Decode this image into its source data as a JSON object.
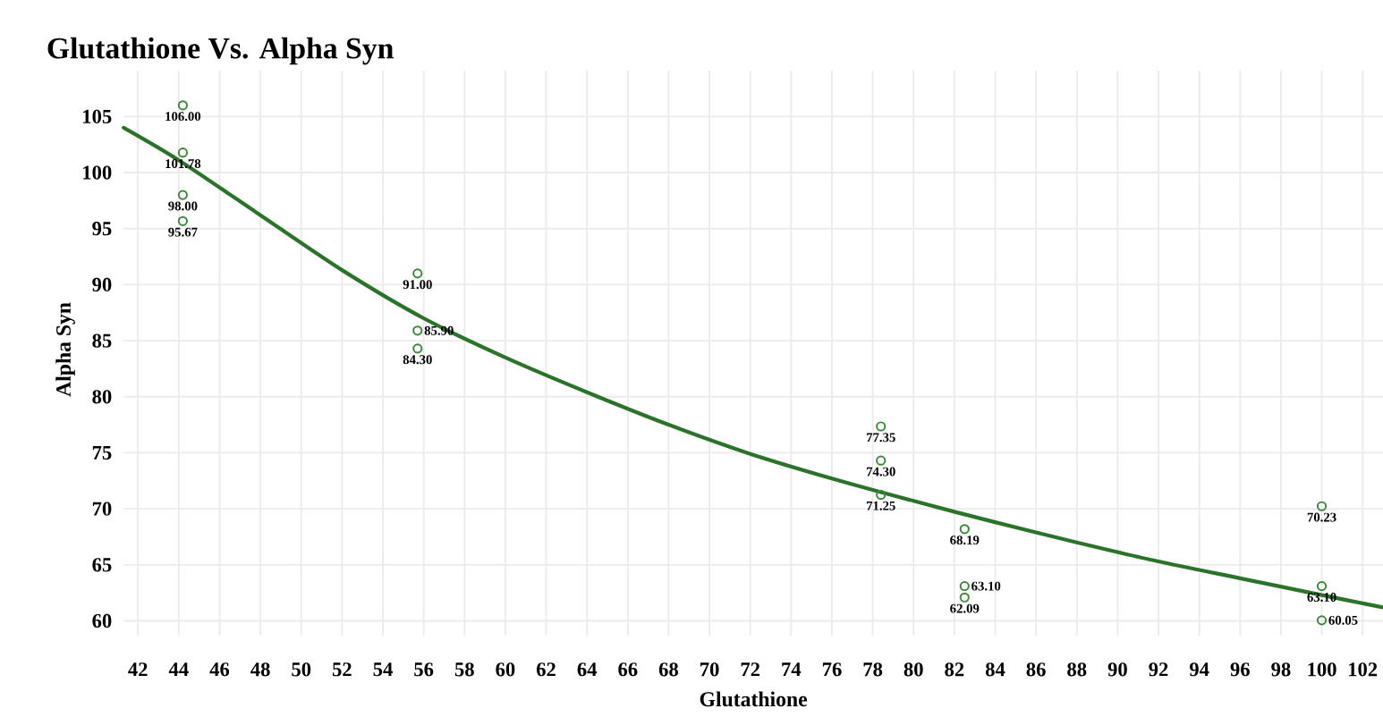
{
  "chart_data": {
    "type": "scatter",
    "title": "Glutathione Vs. Alpha Syn",
    "xlabel": "Glutathione",
    "ylabel": "Alpha Syn",
    "xlim": [
      41.3,
      103
    ],
    "ylim": [
      58.7,
      109.1
    ],
    "xticks": [
      42,
      44,
      46,
      48,
      50,
      52,
      54,
      56,
      58,
      60,
      62,
      64,
      66,
      68,
      70,
      72,
      74,
      76,
      78,
      80,
      82,
      84,
      86,
      88,
      90,
      92,
      94,
      96,
      98,
      100,
      102
    ],
    "yticks": [
      60,
      65,
      70,
      75,
      80,
      85,
      90,
      95,
      100,
      105
    ],
    "grid": true,
    "marker": "circle",
    "series": [
      {
        "color": "#3a8a3a",
        "x": [
          44.2,
          44.2,
          44.2,
          44.2,
          55.7,
          55.7,
          55.7,
          78.4,
          78.4,
          78.4,
          82.5,
          82.5,
          82.5,
          100,
          100,
          100
        ],
        "values": [
          106,
          101.78,
          98,
          95.67,
          91,
          85.9,
          84.3,
          77.35,
          74.3,
          71.25,
          68.19,
          63.1,
          62.09,
          70.23,
          63.1,
          60.05
        ],
        "value_labels": [
          "106.00",
          "101.78",
          "98.00",
          "95.67",
          "91.00",
          "85.90",
          "84.30",
          "77.35",
          "74.30",
          "71.25",
          "68.19",
          "63.10",
          "62.09",
          "70.23",
          "63.10",
          "60.05"
        ]
      },
      {
        "type": "line",
        "color": "#2a742a",
        "marker": "none",
        "line_style": "solid",
        "x": [
          41.3,
          44,
          48,
          52,
          56,
          60,
          64,
          68,
          72,
          76,
          80,
          84,
          88,
          92,
          96,
          100,
          103
        ],
        "values": [
          104.0,
          101.1,
          96.2,
          91.3,
          87.0,
          83.5,
          80.4,
          77.5,
          74.9,
          72.7,
          70.7,
          68.8,
          67.0,
          65.3,
          63.8,
          62.3,
          61.2
        ]
      }
    ]
  }
}
